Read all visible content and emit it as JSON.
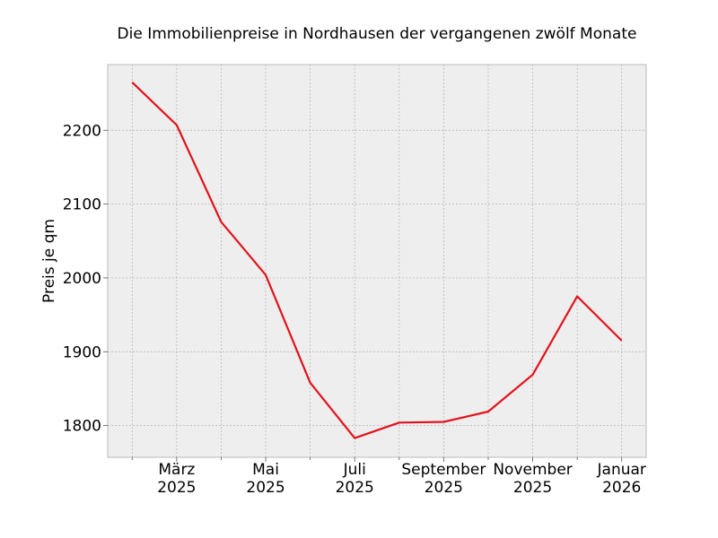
{
  "chart_data": {
    "type": "line",
    "title": "Die Immobilienpreise in Nordhausen der vergangenen zwölf Monate",
    "xlabel": "",
    "ylabel": "Preis je qm",
    "x": [
      "2025-02",
      "2025-03",
      "2025-04",
      "2025-05",
      "2025-06",
      "2025-07",
      "2025-08",
      "2025-09",
      "2025-10",
      "2025-11",
      "2025-12",
      "2026-01"
    ],
    "series": [
      {
        "values": [
          2265,
          2207,
          2076,
          2004,
          1858,
          1783,
          1804,
          1805,
          1819,
          1869,
          1975,
          1915
        ],
        "color": "#e3121b"
      }
    ],
    "ylim": [
      1757,
      2289
    ],
    "yticks": [
      1800,
      1900,
      2000,
      2100,
      2200
    ],
    "xtick_labels": [
      {
        "x": "2025-03",
        "label": [
          "März",
          "2025"
        ]
      },
      {
        "x": "2025-05",
        "label": [
          "Mai",
          "2025"
        ]
      },
      {
        "x": "2025-07",
        "label": [
          "Juli",
          "2025"
        ]
      },
      {
        "x": "2025-09",
        "label": [
          "September",
          "2025"
        ]
      },
      {
        "x": "2025-11",
        "label": [
          "November",
          "2025"
        ]
      },
      {
        "x": "2026-01",
        "label": [
          "Januar",
          "2026"
        ]
      }
    ],
    "grid": true,
    "background": "#eeeeee"
  }
}
